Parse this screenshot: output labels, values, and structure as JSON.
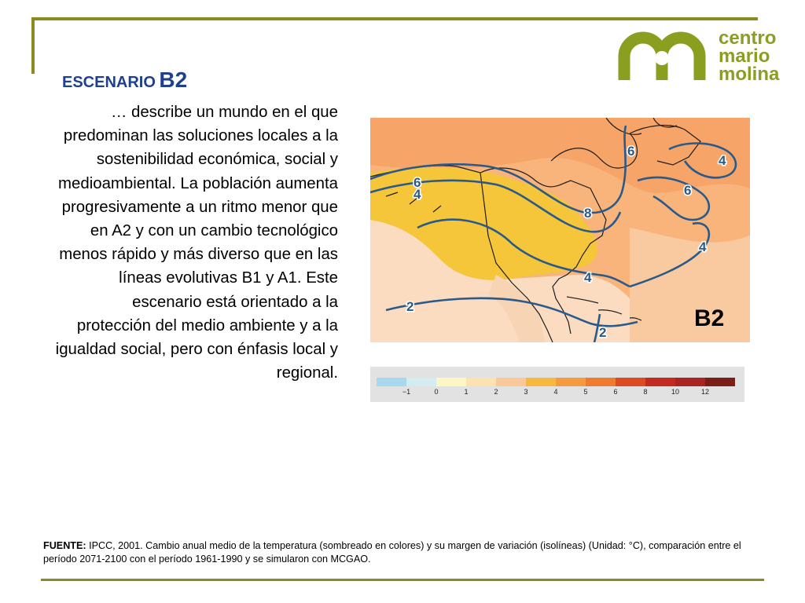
{
  "logo": {
    "line1": "centro",
    "line2": "mario",
    "line3": "molina",
    "color": "#8a9e1f"
  },
  "heading": {
    "prefix": "ESCENARIO",
    "code": "B2"
  },
  "description": "… describe un mundo en el que predominan las soluciones locales a la sostenibilidad económica, social y medioambiental. La población aumenta progresivamente a un ritmo menor que en A2 y con un cambio tecnológico menos rápido y más diverso que en las líneas evolutivas B1 y A1. Este escenario está orientado a la protección del medio ambiente y a la igualdad social, pero con énfasis local y regional.",
  "map": {
    "label": "B2",
    "isoline_labels": [
      "6",
      "4",
      "8",
      "6",
      "4",
      "6",
      "4",
      "4",
      "2",
      "2"
    ]
  },
  "legend": {
    "tick_labels": [
      "−1",
      "0",
      "1",
      "2",
      "3",
      "4",
      "5",
      "6",
      "8",
      "10",
      "12"
    ],
    "colors": [
      "#a8d8ef",
      "#d4ecef",
      "#fcf5c5",
      "#fbe2b0",
      "#fbc89a",
      "#f7b93d",
      "#f59a3e",
      "#f07a2e",
      "#dd4b22",
      "#c52a22",
      "#a82522",
      "#7a1e18"
    ]
  },
  "source": {
    "label": "FUENTE:",
    "text": " IPCC, 2001. Cambio anual medio de la temperatura (sombreado en colores) y su margen de variación (isolíneas) (Unidad: °C), comparación entre el período 2071-2100 con el período 1961-1990 y se simularon con MCGAO."
  }
}
